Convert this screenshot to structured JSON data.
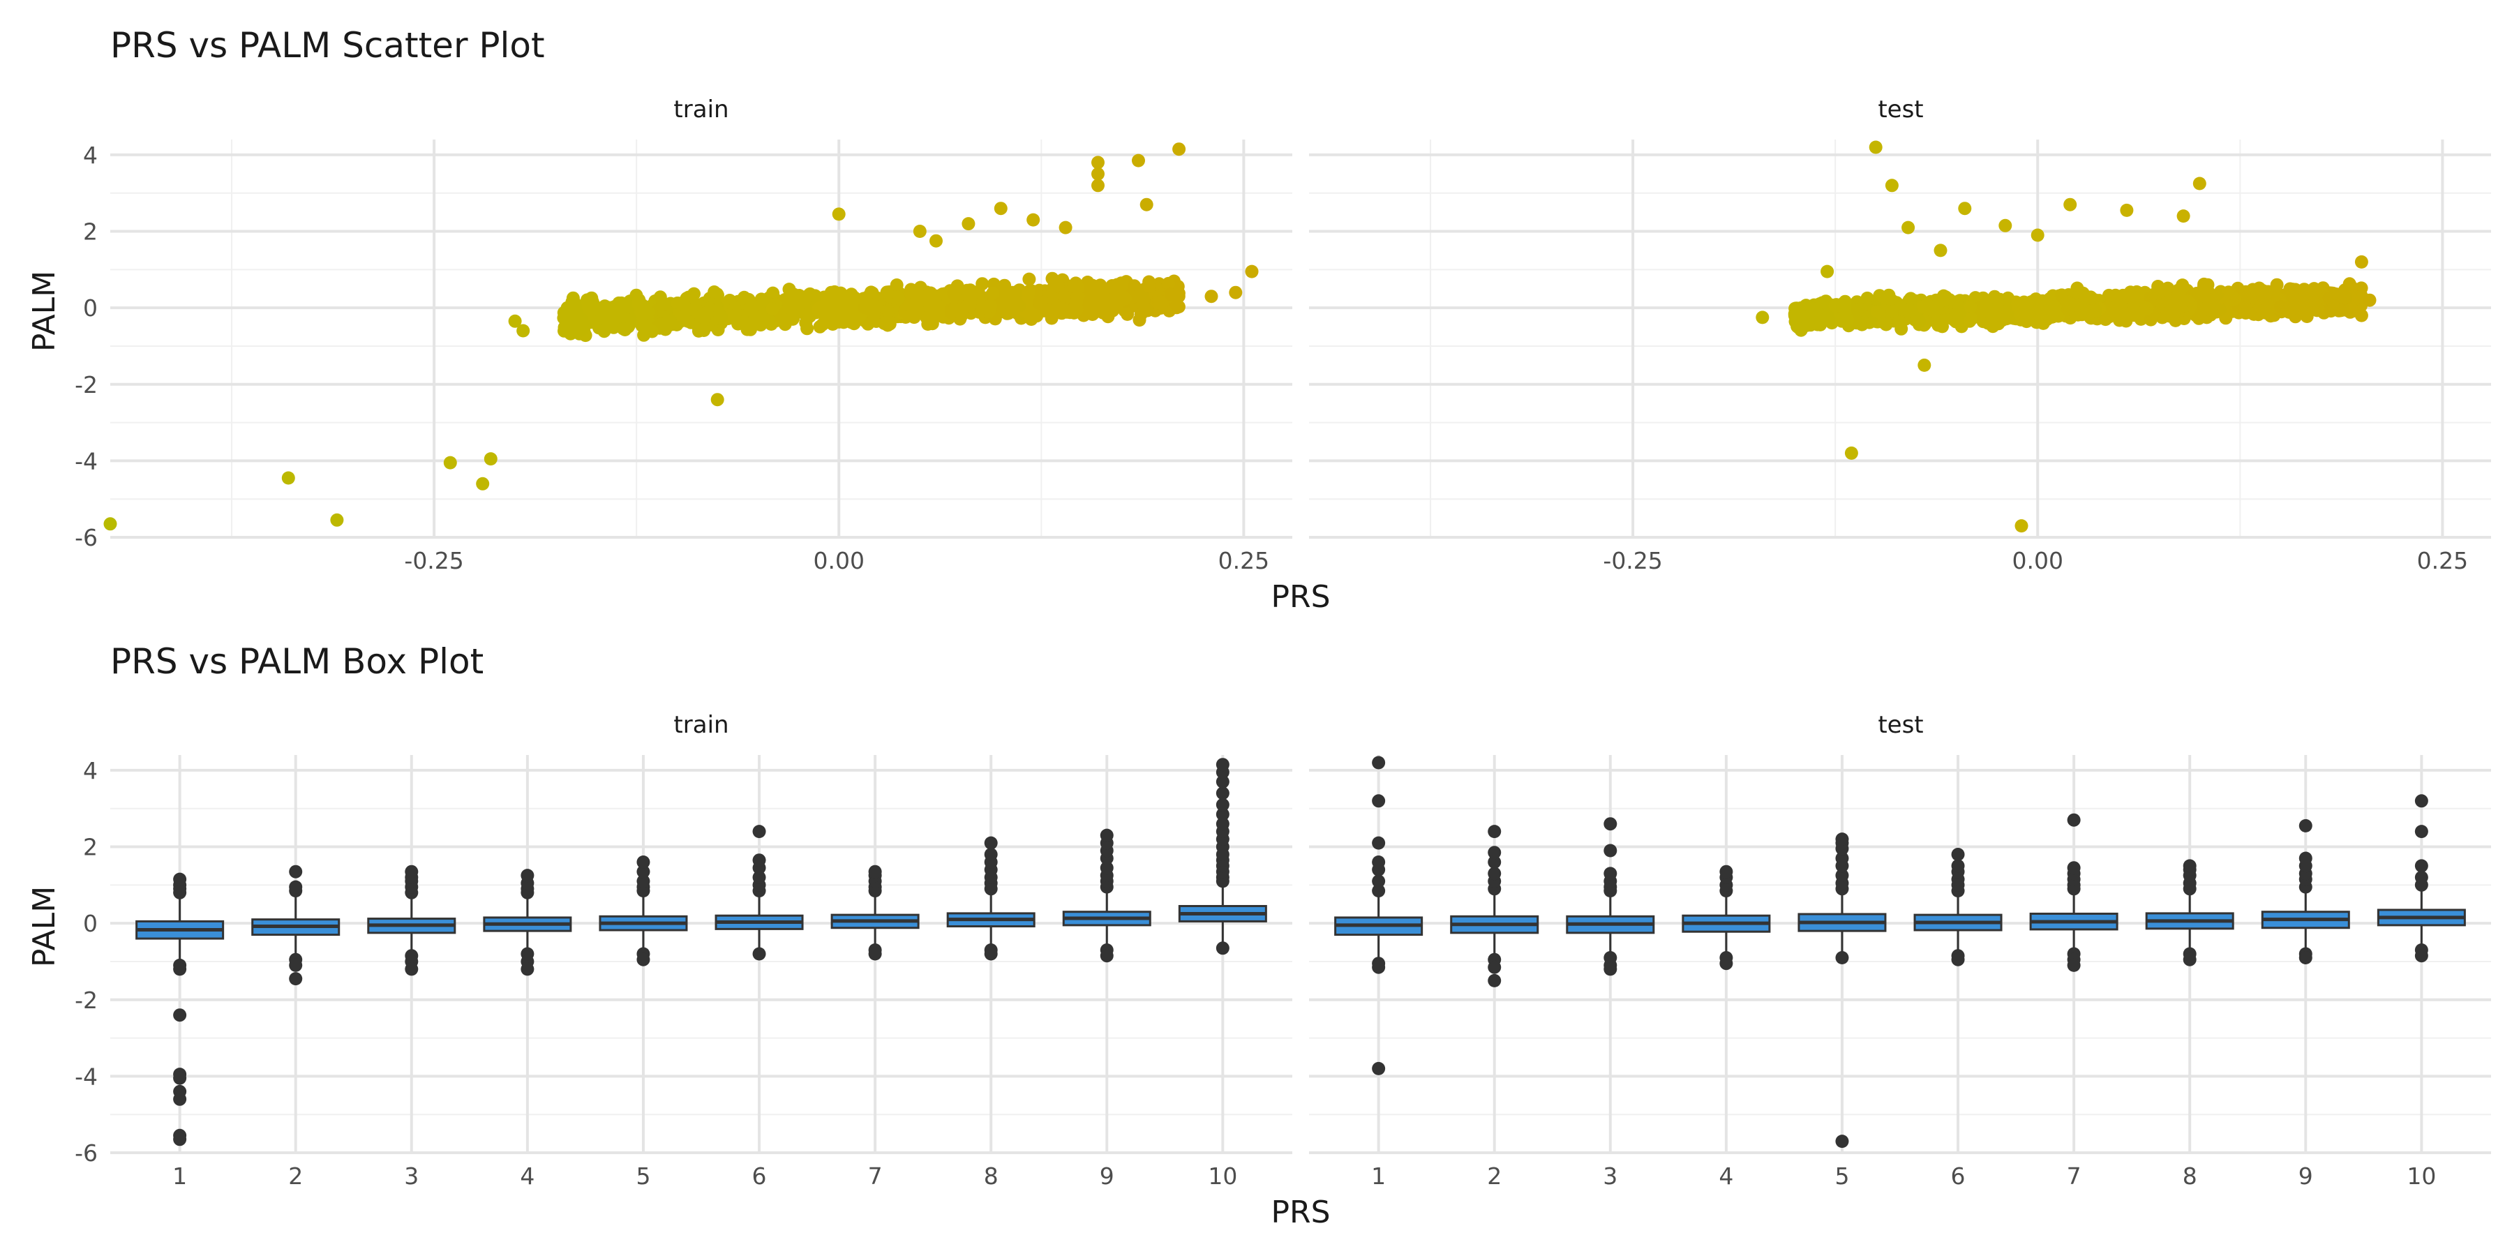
{
  "chart_data": [
    {
      "type": "scatter",
      "title": "PRS vs PALM Scatter Plot",
      "xlabel": "PRS",
      "ylabel": "PALM",
      "facets": [
        "train",
        "test"
      ],
      "xlim": [
        -0.45,
        0.28
      ],
      "ylim": [
        -6,
        4.4
      ],
      "x_ticks": [
        "-0.25",
        "0.00",
        "0.25"
      ],
      "y_ticks": [
        "4",
        "2",
        "0",
        "-2",
        "-4",
        "-6"
      ],
      "color_scale": {
        "low": "#00ff00",
        "mid": "#c8b400",
        "high": "#ff1a00"
      },
      "cluster": {
        "train": {
          "x_range": [
            -0.17,
            0.21
          ],
          "trend": [
            0.0,
            1.5
          ],
          "spread": 0.38
        },
        "test": {
          "x_range": [
            -0.15,
            0.2
          ],
          "trend": [
            0.0,
            1.2
          ],
          "spread": 0.33
        }
      },
      "series": [
        {
          "facet": "train",
          "points": [
            [
              -0.45,
              -5.65
            ],
            [
              -0.34,
              -4.45
            ],
            [
              -0.31,
              -5.55
            ],
            [
              -0.24,
              -4.05
            ],
            [
              -0.215,
              -3.95
            ],
            [
              -0.22,
              -4.6
            ],
            [
              -0.2,
              -0.35
            ],
            [
              -0.195,
              -0.6
            ],
            [
              -0.075,
              -2.4
            ],
            [
              0.0,
              2.45
            ],
            [
              0.1,
              2.6
            ],
            [
              0.12,
              2.3
            ],
            [
              0.16,
              3.8
            ],
            [
              0.16,
              3.2
            ],
            [
              0.16,
              3.5
            ],
            [
              0.185,
              3.85
            ],
            [
              0.19,
              2.7
            ],
            [
              0.21,
              4.15
            ],
            [
              0.245,
              0.4
            ],
            [
              0.255,
              0.95
            ],
            [
              0.23,
              0.3
            ],
            [
              0.08,
              2.2
            ],
            [
              0.05,
              2.0
            ],
            [
              0.14,
              2.1
            ],
            [
              0.06,
              1.75
            ]
          ]
        },
        {
          "facet": "test",
          "points": [
            [
              -0.17,
              -0.25
            ],
            [
              -0.13,
              0.95
            ],
            [
              -0.115,
              -3.8
            ],
            [
              -0.1,
              4.2
            ],
            [
              -0.09,
              3.2
            ],
            [
              -0.08,
              2.1
            ],
            [
              -0.045,
              2.6
            ],
            [
              -0.02,
              2.15
            ],
            [
              -0.01,
              -5.7
            ],
            [
              0.02,
              2.7
            ],
            [
              0.1,
              3.25
            ],
            [
              0.09,
              2.4
            ],
            [
              0.055,
              2.55
            ],
            [
              0.2,
              1.2
            ],
            [
              0.2,
              -0.2
            ],
            [
              -0.07,
              -1.5
            ],
            [
              0.0,
              1.9
            ],
            [
              -0.06,
              1.5
            ],
            [
              0.205,
              0.2
            ],
            [
              0.18,
              0.25
            ]
          ]
        }
      ]
    },
    {
      "type": "box",
      "title": "PRS vs PALM Box Plot",
      "xlabel": "PRS",
      "ylabel": "PALM",
      "facets": [
        "train",
        "test"
      ],
      "categories": [
        "1",
        "2",
        "3",
        "4",
        "5",
        "6",
        "7",
        "8",
        "9",
        "10"
      ],
      "ylim": [
        -6,
        4.4
      ],
      "y_ticks": [
        "4",
        "2",
        "0",
        "-2",
        "-4",
        "-6"
      ],
      "fill": "#3a8fd8",
      "series": [
        {
          "facet": "train",
          "boxes": [
            {
              "q1": -0.4,
              "median": -0.17,
              "q3": 0.05,
              "wlo": -1.0,
              "whi": 0.7,
              "outliers": [
                0.8,
                0.9,
                1.0,
                1.15,
                -1.1,
                -1.2,
                -2.4,
                -3.95,
                -4.05,
                -4.4,
                -4.6,
                -5.55,
                -5.65
              ]
            },
            {
              "q1": -0.3,
              "median": -0.08,
              "q3": 0.1,
              "wlo": -0.85,
              "whi": 0.75,
              "outliers": [
                0.85,
                0.95,
                1.35,
                -0.95,
                -1.1,
                -1.45
              ]
            },
            {
              "q1": -0.25,
              "median": -0.05,
              "q3": 0.12,
              "wlo": -0.75,
              "whi": 0.7,
              "outliers": [
                0.8,
                0.95,
                1.1,
                1.2,
                1.35,
                -0.85,
                -1.0,
                -1.2
              ]
            },
            {
              "q1": -0.2,
              "median": -0.02,
              "q3": 0.15,
              "wlo": -0.7,
              "whi": 0.7,
              "outliers": [
                0.8,
                0.9,
                1.05,
                1.25,
                -0.8,
                -1.0,
                -1.2
              ]
            },
            {
              "q1": -0.18,
              "median": 0.0,
              "q3": 0.18,
              "wlo": -0.75,
              "whi": 0.75,
              "outliers": [
                0.85,
                0.95,
                1.1,
                1.35,
                1.6,
                -0.8,
                -0.95
              ]
            },
            {
              "q1": -0.15,
              "median": 0.03,
              "q3": 0.2,
              "wlo": -0.7,
              "whi": 0.7,
              "outliers": [
                0.85,
                1.0,
                1.2,
                1.45,
                1.65,
                2.4,
                -0.8
              ]
            },
            {
              "q1": -0.12,
              "median": 0.06,
              "q3": 0.22,
              "wlo": -0.6,
              "whi": 0.75,
              "outliers": [
                0.85,
                0.95,
                1.1,
                1.25,
                1.35,
                -0.7,
                -0.8
              ]
            },
            {
              "q1": -0.08,
              "median": 0.1,
              "q3": 0.26,
              "wlo": -0.6,
              "whi": 0.8,
              "outliers": [
                0.9,
                1.05,
                1.2,
                1.4,
                1.6,
                1.8,
                2.1,
                -0.7,
                -0.8
              ]
            },
            {
              "q1": -0.05,
              "median": 0.13,
              "q3": 0.3,
              "wlo": -0.6,
              "whi": 0.85,
              "outliers": [
                0.95,
                1.1,
                1.25,
                1.45,
                1.7,
                1.9,
                2.1,
                2.3,
                -0.7,
                -0.85
              ]
            },
            {
              "q1": 0.05,
              "median": 0.25,
              "q3": 0.45,
              "wlo": -0.5,
              "whi": 1.0,
              "outliers": [
                1.1,
                1.2,
                1.35,
                1.5,
                1.65,
                1.8,
                2.0,
                2.2,
                2.4,
                2.6,
                2.85,
                3.1,
                3.4,
                3.7,
                3.95,
                4.15,
                -0.65
              ]
            }
          ]
        },
        {
          "facet": "test",
          "boxes": [
            {
              "q1": -0.3,
              "median": -0.05,
              "q3": 0.15,
              "wlo": -1.0,
              "whi": 0.75,
              "outliers": [
                0.85,
                1.1,
                1.4,
                1.6,
                2.1,
                3.2,
                4.2,
                -1.05,
                -1.15,
                -3.8
              ]
            },
            {
              "q1": -0.25,
              "median": -0.03,
              "q3": 0.18,
              "wlo": -0.85,
              "whi": 0.75,
              "outliers": [
                0.9,
                1.1,
                1.3,
                1.6,
                1.85,
                2.4,
                -0.95,
                -1.15,
                -1.5
              ]
            },
            {
              "q1": -0.25,
              "median": -0.02,
              "q3": 0.18,
              "wlo": -0.8,
              "whi": 0.75,
              "outliers": [
                0.85,
                0.95,
                1.1,
                1.3,
                1.9,
                2.6,
                -0.9,
                -1.1,
                -1.2
              ]
            },
            {
              "q1": -0.22,
              "median": 0.0,
              "q3": 0.2,
              "wlo": -0.8,
              "whi": 0.75,
              "outliers": [
                0.85,
                1.0,
                1.2,
                1.35,
                -0.9,
                -1.05
              ]
            },
            {
              "q1": -0.2,
              "median": 0.02,
              "q3": 0.24,
              "wlo": -0.75,
              "whi": 0.8,
              "outliers": [
                0.9,
                1.05,
                1.25,
                1.5,
                1.7,
                1.95,
                2.1,
                2.2,
                -0.9,
                -5.7
              ]
            },
            {
              "q1": -0.18,
              "median": 0.02,
              "q3": 0.22,
              "wlo": -0.75,
              "whi": 0.75,
              "outliers": [
                0.85,
                1.0,
                1.15,
                1.35,
                1.5,
                1.8,
                -0.85,
                -0.95
              ]
            },
            {
              "q1": -0.16,
              "median": 0.04,
              "q3": 0.25,
              "wlo": -0.7,
              "whi": 0.8,
              "outliers": [
                0.9,
                1.0,
                1.15,
                1.3,
                1.45,
                2.7,
                -0.8,
                -0.95,
                -1.1
              ]
            },
            {
              "q1": -0.14,
              "median": 0.06,
              "q3": 0.26,
              "wlo": -0.7,
              "whi": 0.8,
              "outliers": [
                0.9,
                1.05,
                1.25,
                1.4,
                1.5,
                -0.8,
                -0.95
              ]
            },
            {
              "q1": -0.12,
              "median": 0.1,
              "q3": 0.3,
              "wlo": -0.7,
              "whi": 0.85,
              "outliers": [
                0.95,
                1.15,
                1.3,
                1.5,
                1.7,
                2.55,
                -0.8,
                -0.9
              ]
            },
            {
              "q1": -0.05,
              "median": 0.15,
              "q3": 0.35,
              "wlo": -0.6,
              "whi": 0.9,
              "outliers": [
                1.0,
                1.2,
                1.5,
                2.4,
                3.2,
                -0.7,
                -0.85
              ]
            }
          ]
        }
      ]
    }
  ]
}
